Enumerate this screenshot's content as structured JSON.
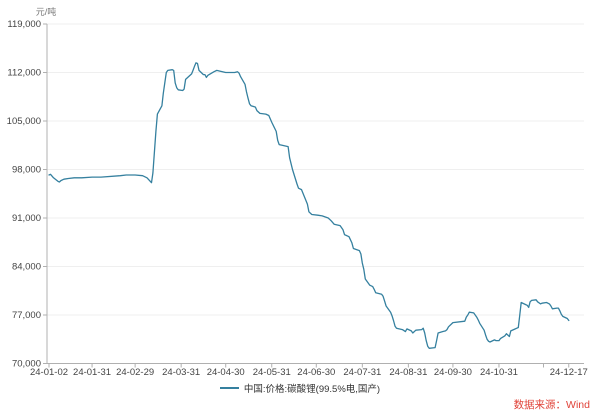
{
  "header": {
    "unit_label": "元/吨"
  },
  "legend": {
    "label": "中国:价格:碳酸锂(99.5%电,国产)"
  },
  "source": {
    "label": "数据来源：Wind"
  },
  "colors": {
    "line": "#35809f",
    "axis": "#b0b0b0",
    "grid": "#efefef",
    "tick_text": "#444444",
    "unit_text": "#777777",
    "source_text": "#e04339",
    "background": "#ffffff"
  },
  "chart_data": {
    "type": "line",
    "title": "",
    "xlabel": "",
    "ylabel": "元/吨",
    "ylim": [
      70000,
      119000
    ],
    "y_ticks": [
      70000,
      77000,
      84000,
      91000,
      98000,
      105000,
      112000,
      119000
    ],
    "y_tick_labels": [
      "70,000",
      "77,000",
      "84,000",
      "91,000",
      "98,000",
      "105,000",
      "112,000",
      "119,000"
    ],
    "x_tick_labels": [
      "24-01-02",
      "24-01-31",
      "24-02-29",
      "24-03-31",
      "24-04-30",
      "24-05-31",
      "24-06-30",
      "24-07-31",
      "24-08-31",
      "24-09-30",
      "24-10-31",
      "24-12-17"
    ],
    "x_unlabeled_ticks": [
      "24-11-30"
    ],
    "grid": "horizontal",
    "legend_position": "bottom",
    "series": [
      {
        "name": "中国:价格:碳酸锂(99.5%电,国产)",
        "color": "#35809f",
        "points": [
          [
            "24-01-02",
            97200
          ],
          [
            "24-01-03",
            97300
          ],
          [
            "24-01-05",
            96800
          ],
          [
            "24-01-08",
            96300
          ],
          [
            "24-01-09",
            96200
          ],
          [
            "24-01-10",
            96400
          ],
          [
            "24-01-12",
            96600
          ],
          [
            "24-01-15",
            96700
          ],
          [
            "24-01-19",
            96800
          ],
          [
            "24-01-24",
            96800
          ],
          [
            "24-01-31",
            96900
          ],
          [
            "24-02-06",
            96900
          ],
          [
            "24-02-19",
            97100
          ],
          [
            "24-02-23",
            97200
          ],
          [
            "24-02-29",
            97200
          ],
          [
            "24-03-05",
            97100
          ],
          [
            "24-03-08",
            96800
          ],
          [
            "24-03-11",
            96100
          ],
          [
            "24-03-12",
            97500
          ],
          [
            "24-03-13",
            100500
          ],
          [
            "24-03-14",
            103500
          ],
          [
            "24-03-15",
            106000
          ],
          [
            "24-03-18",
            107200
          ],
          [
            "24-03-19",
            109000
          ],
          [
            "24-03-20",
            110500
          ],
          [
            "24-03-21",
            112000
          ],
          [
            "24-03-22",
            112300
          ],
          [
            "24-03-25",
            112400
          ],
          [
            "24-03-26",
            112300
          ],
          [
            "24-03-27",
            110500
          ],
          [
            "24-03-28",
            109800
          ],
          [
            "24-03-29",
            109500
          ],
          [
            "24-04-01",
            109400
          ],
          [
            "24-04-02",
            109600
          ],
          [
            "24-04-03",
            111000
          ],
          [
            "24-04-07",
            111800
          ],
          [
            "24-04-08",
            112300
          ],
          [
            "24-04-09",
            112900
          ],
          [
            "24-04-10",
            113400
          ],
          [
            "24-04-11",
            113300
          ],
          [
            "24-04-12",
            112300
          ],
          [
            "24-04-15",
            111700
          ],
          [
            "24-04-16",
            111700
          ],
          [
            "24-04-17",
            111300
          ],
          [
            "24-04-18",
            111600
          ],
          [
            "24-04-22",
            112100
          ],
          [
            "24-04-24",
            112300
          ],
          [
            "24-04-26",
            112200
          ],
          [
            "24-04-30",
            112000
          ],
          [
            "24-05-06",
            112000
          ],
          [
            "24-05-08",
            112100
          ],
          [
            "24-05-09",
            111900
          ],
          [
            "24-05-10",
            111400
          ],
          [
            "24-05-13",
            110300
          ],
          [
            "24-05-14",
            109200
          ],
          [
            "24-05-15",
            108300
          ],
          [
            "24-05-16",
            107500
          ],
          [
            "24-05-17",
            107200
          ],
          [
            "24-05-20",
            107000
          ],
          [
            "24-05-21",
            106500
          ],
          [
            "24-05-23",
            106100
          ],
          [
            "24-05-27",
            106000
          ],
          [
            "24-05-29",
            105800
          ],
          [
            "24-05-31",
            104800
          ],
          [
            "24-06-03",
            103500
          ],
          [
            "24-06-04",
            102200
          ],
          [
            "24-06-05",
            101600
          ],
          [
            "24-06-07",
            101500
          ],
          [
            "24-06-11",
            101300
          ],
          [
            "24-06-12",
            99700
          ],
          [
            "24-06-14",
            98000
          ],
          [
            "24-06-17",
            95900
          ],
          [
            "24-06-18",
            95300
          ],
          [
            "24-06-20",
            95100
          ],
          [
            "24-06-24",
            93000
          ],
          [
            "24-06-25",
            91900
          ],
          [
            "24-06-27",
            91500
          ],
          [
            "24-07-01",
            91400
          ],
          [
            "24-07-04",
            91300
          ],
          [
            "24-07-08",
            91000
          ],
          [
            "24-07-10",
            90600
          ],
          [
            "24-07-12",
            90100
          ],
          [
            "24-07-16",
            89900
          ],
          [
            "24-07-18",
            89300
          ],
          [
            "24-07-19",
            88600
          ],
          [
            "24-07-22",
            88300
          ],
          [
            "24-07-24",
            87400
          ],
          [
            "24-07-25",
            86600
          ],
          [
            "24-07-29",
            86300
          ],
          [
            "24-07-30",
            85800
          ],
          [
            "24-07-31",
            84500
          ],
          [
            "24-08-01",
            83600
          ],
          [
            "24-08-02",
            82200
          ],
          [
            "24-08-05",
            81300
          ],
          [
            "24-08-07",
            81100
          ],
          [
            "24-08-08",
            80700
          ],
          [
            "24-08-09",
            80200
          ],
          [
            "24-08-13",
            80000
          ],
          [
            "24-08-14",
            79700
          ],
          [
            "24-08-15",
            79000
          ],
          [
            "24-08-16",
            78300
          ],
          [
            "24-08-19",
            77400
          ],
          [
            "24-08-20",
            76900
          ],
          [
            "24-08-21",
            76200
          ],
          [
            "24-08-22",
            75400
          ],
          [
            "24-08-23",
            75100
          ],
          [
            "24-08-27",
            74900
          ],
          [
            "24-08-29",
            74600
          ],
          [
            "24-08-30",
            75000
          ],
          [
            "24-09-02",
            74700
          ],
          [
            "24-09-03",
            74400
          ],
          [
            "24-09-05",
            74800
          ],
          [
            "24-09-09",
            74900
          ],
          [
            "24-09-10",
            75100
          ],
          [
            "24-09-11",
            74400
          ],
          [
            "24-09-12",
            73300
          ],
          [
            "24-09-13",
            72500
          ],
          [
            "24-09-14",
            72200
          ],
          [
            "24-09-18",
            72300
          ],
          [
            "24-09-19",
            73300
          ],
          [
            "24-09-20",
            74400
          ],
          [
            "24-09-23",
            74600
          ],
          [
            "24-09-25",
            74700
          ],
          [
            "24-09-26",
            74900
          ],
          [
            "24-09-27",
            75300
          ],
          [
            "24-09-30",
            75900
          ],
          [
            "24-10-08",
            76100
          ],
          [
            "24-10-09",
            76700
          ],
          [
            "24-10-10",
            77000
          ],
          [
            "24-10-11",
            77400
          ],
          [
            "24-10-14",
            77300
          ],
          [
            "24-10-15",
            77000
          ],
          [
            "24-10-16",
            76700
          ],
          [
            "24-10-17",
            76300
          ],
          [
            "24-10-18",
            75800
          ],
          [
            "24-10-21",
            74800
          ],
          [
            "24-10-22",
            74100
          ],
          [
            "24-10-23",
            73500
          ],
          [
            "24-10-24",
            73200
          ],
          [
            "24-10-25",
            73100
          ],
          [
            "24-10-28",
            73400
          ],
          [
            "24-10-29",
            73300
          ],
          [
            "24-10-31",
            73300
          ],
          [
            "24-11-01",
            73600
          ],
          [
            "24-11-04",
            74000
          ],
          [
            "24-11-05",
            74300
          ],
          [
            "24-11-06",
            74100
          ],
          [
            "24-11-07",
            73900
          ],
          [
            "24-11-08",
            74700
          ],
          [
            "24-11-11",
            75000
          ],
          [
            "24-11-12",
            75100
          ],
          [
            "24-11-13",
            75200
          ],
          [
            "24-11-14",
            76900
          ],
          [
            "24-11-15",
            78800
          ],
          [
            "24-11-18",
            78500
          ],
          [
            "24-11-19",
            78400
          ],
          [
            "24-11-20",
            78100
          ],
          [
            "24-11-21",
            78900
          ],
          [
            "24-11-22",
            79100
          ],
          [
            "24-11-25",
            79200
          ],
          [
            "24-11-26",
            78900
          ],
          [
            "24-11-28",
            78600
          ],
          [
            "24-11-29",
            78700
          ],
          [
            "24-12-02",
            78800
          ],
          [
            "24-12-04",
            78600
          ],
          [
            "24-12-05",
            78300
          ],
          [
            "24-12-06",
            77900
          ],
          [
            "24-12-09",
            78000
          ],
          [
            "24-12-10",
            78000
          ],
          [
            "24-12-11",
            77600
          ],
          [
            "24-12-12",
            77100
          ],
          [
            "24-12-13",
            76800
          ],
          [
            "24-12-16",
            76500
          ],
          [
            "24-12-17",
            76200
          ]
        ]
      }
    ]
  }
}
